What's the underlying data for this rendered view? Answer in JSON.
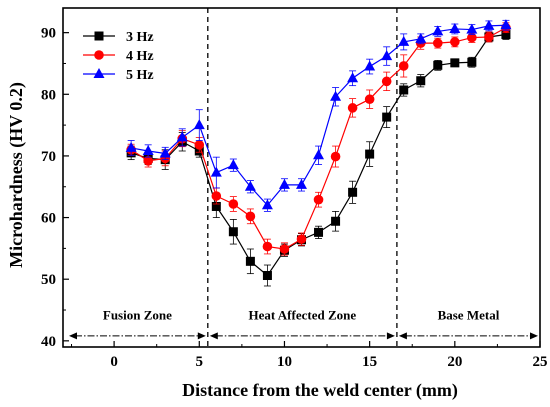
{
  "chart_data": {
    "type": "line",
    "title": "",
    "xlabel": "Distance from the weld center (mm)",
    "ylabel": "Microhardness (HV 0.2)",
    "xlim": [
      -3,
      25
    ],
    "ylim": [
      39,
      94
    ],
    "xticks": [
      0,
      5,
      10,
      15,
      20,
      25
    ],
    "yticks": [
      40,
      50,
      60,
      70,
      80,
      90
    ],
    "grid": false,
    "legend_position": "top-left",
    "zone_boundaries": [
      5.5,
      16.6
    ],
    "zones": [
      {
        "label": "Fusion Zone",
        "from": -3,
        "to": 5.5
      },
      {
        "label": "Heat Affected Zone",
        "from": 5.5,
        "to": 16.6
      },
      {
        "label": "Base Metal",
        "from": 16.6,
        "to": 25
      }
    ],
    "x": [
      1,
      2,
      3,
      4,
      5,
      6,
      7,
      8,
      9,
      10,
      11,
      12,
      13,
      14,
      15,
      16,
      17,
      18,
      19,
      20,
      21,
      22,
      23
    ],
    "series": [
      {
        "name": "3 Hz",
        "color": "#000000",
        "marker": "square",
        "values": [
          70.5,
          69.6,
          69.4,
          72.3,
          70.8,
          61.8,
          57.7,
          52.9,
          50.6,
          54.7,
          56.4,
          57.6,
          59.4,
          64.1,
          70.3,
          76.3,
          80.7,
          82.2,
          84.7,
          85.1,
          85.2,
          89.3,
          89.7
        ],
        "errors": [
          1.1,
          1.0,
          1.6,
          1.5,
          1.0,
          1.8,
          2.0,
          2.0,
          1.7,
          1.0,
          1.0,
          1.0,
          1.6,
          1.8,
          2.0,
          1.7,
          1.0,
          1.0,
          0.8,
          0.6,
          0.8,
          0.8,
          0.8
        ]
      },
      {
        "name": "4 Hz",
        "color": "#ff0000",
        "marker": "circle",
        "values": [
          71.0,
          69.2,
          69.6,
          72.8,
          71.8,
          63.5,
          62.2,
          60.2,
          55.3,
          54.9,
          56.5,
          62.9,
          69.9,
          77.8,
          79.2,
          82.1,
          84.6,
          88.3,
          88.3,
          88.5,
          89.2,
          89.3,
          90.8
        ],
        "errors": [
          0.9,
          1.0,
          1.2,
          1.3,
          1.2,
          1.3,
          1.2,
          1.2,
          1.2,
          1.0,
          1.0,
          1.2,
          1.7,
          1.5,
          1.5,
          1.5,
          1.8,
          1.0,
          0.8,
          0.8,
          0.8,
          0.8,
          0.8
        ]
      },
      {
        "name": "5 Hz",
        "color": "#0000ff",
        "marker": "triangle",
        "values": [
          71.3,
          70.8,
          70.4,
          73.0,
          75.0,
          67.3,
          68.5,
          65.0,
          62.0,
          65.3,
          65.3,
          70.1,
          79.6,
          82.6,
          84.5,
          86.2,
          88.5,
          89.0,
          90.2,
          90.6,
          90.5,
          91.1,
          91.2
        ],
        "errors": [
          1.2,
          1.0,
          1.0,
          1.4,
          2.5,
          2.5,
          1.0,
          1.0,
          1.0,
          1.0,
          1.0,
          1.5,
          1.5,
          1.2,
          1.2,
          1.5,
          1.3,
          0.8,
          0.8,
          0.8,
          0.8,
          0.8,
          0.8
        ]
      }
    ]
  }
}
